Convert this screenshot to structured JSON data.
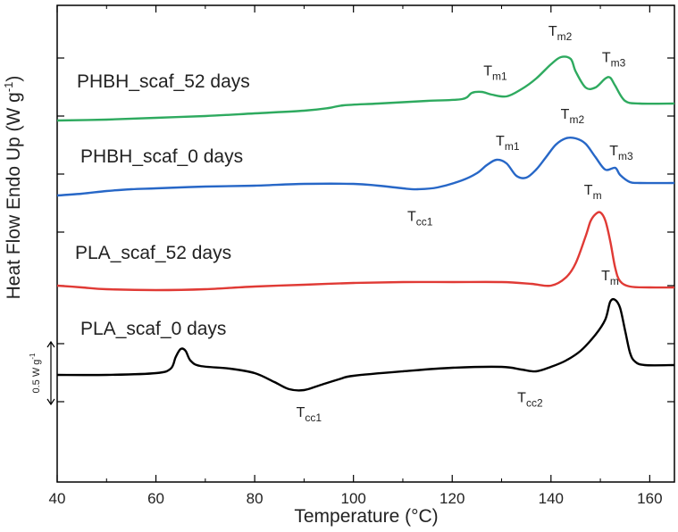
{
  "chart_data": {
    "type": "line",
    "xlabel": "Temperature (°C)",
    "ylabel": "Heat Flow Endo Up (W g",
    "ylabel_sup": "-1",
    "ylabel_close": ")",
    "xlim": [
      40,
      165
    ],
    "xticks": [
      40,
      60,
      80,
      100,
      120,
      140,
      160
    ],
    "scale_bar": {
      "label": "0.5 W g",
      "sup": "-1"
    },
    "series": [
      {
        "name": "PHBH_scaf_52 days",
        "color": "#2eaa5f",
        "points": [
          [
            40,
            135
          ],
          [
            50,
            134
          ],
          [
            60,
            132
          ],
          [
            70,
            130
          ],
          [
            80,
            127
          ],
          [
            90,
            124
          ],
          [
            95,
            121
          ],
          [
            98,
            118
          ],
          [
            105,
            116
          ],
          [
            115,
            113
          ],
          [
            122,
            111
          ],
          [
            124,
            104
          ],
          [
            126,
            103
          ],
          [
            128,
            106
          ],
          [
            131,
            108
          ],
          [
            134,
            100
          ],
          [
            137,
            88
          ],
          [
            140,
            72
          ],
          [
            142,
            64
          ],
          [
            144,
            66
          ],
          [
            145,
            80
          ],
          [
            147,
            98
          ],
          [
            149,
            98
          ],
          [
            151,
            88
          ],
          [
            152,
            87
          ],
          [
            153,
            96
          ],
          [
            155,
            113
          ],
          [
            158,
            116
          ],
          [
            165,
            116
          ]
        ]
      },
      {
        "name": "PHBH_scaf_0 days",
        "color": "#2767c7",
        "points": [
          [
            40,
            219
          ],
          [
            45,
            217
          ],
          [
            50,
            214
          ],
          [
            55,
            212
          ],
          [
            60,
            211
          ],
          [
            70,
            209
          ],
          [
            80,
            208
          ],
          [
            90,
            206
          ],
          [
            100,
            206
          ],
          [
            105,
            208
          ],
          [
            110,
            211
          ],
          [
            113,
            212
          ],
          [
            117,
            210
          ],
          [
            122,
            202
          ],
          [
            125,
            194
          ],
          [
            127,
            185
          ],
          [
            129,
            179
          ],
          [
            131,
            183
          ],
          [
            133,
            197
          ],
          [
            135,
            199
          ],
          [
            137,
            190
          ],
          [
            139,
            176
          ],
          [
            141,
            162
          ],
          [
            143,
            155
          ],
          [
            145,
            155
          ],
          [
            147,
            161
          ],
          [
            149,
            176
          ],
          [
            151,
            190
          ],
          [
            153,
            188
          ],
          [
            154,
            196
          ],
          [
            156,
            204
          ],
          [
            158,
            205
          ],
          [
            165,
            205
          ]
        ]
      },
      {
        "name": "PLA_scaf_52 days",
        "color": "#e03a35",
        "points": [
          [
            40,
            320
          ],
          [
            45,
            322
          ],
          [
            50,
            324
          ],
          [
            60,
            325
          ],
          [
            70,
            324
          ],
          [
            80,
            321
          ],
          [
            90,
            319
          ],
          [
            100,
            317
          ],
          [
            110,
            316
          ],
          [
            120,
            316
          ],
          [
            130,
            316
          ],
          [
            136,
            318
          ],
          [
            140,
            320
          ],
          [
            143,
            311
          ],
          [
            145,
            295
          ],
          [
            147,
            265
          ],
          [
            148,
            248
          ],
          [
            149,
            240
          ],
          [
            150,
            238
          ],
          [
            151,
            247
          ],
          [
            152,
            270
          ],
          [
            153,
            300
          ],
          [
            154,
            315
          ],
          [
            156,
            321
          ],
          [
            160,
            322
          ],
          [
            165,
            322
          ]
        ]
      },
      {
        "name": "PLA_scaf_0 days",
        "color": "#000000",
        "points": [
          [
            40,
            420
          ],
          [
            50,
            420
          ],
          [
            60,
            418
          ],
          [
            63,
            413
          ],
          [
            64,
            400
          ],
          [
            65,
            391
          ],
          [
            66,
            393
          ],
          [
            67,
            404
          ],
          [
            69,
            410
          ],
          [
            75,
            413
          ],
          [
            80,
            418
          ],
          [
            84,
            428
          ],
          [
            87,
            436
          ],
          [
            90,
            437
          ],
          [
            93,
            432
          ],
          [
            97,
            425
          ],
          [
            100,
            421
          ],
          [
            110,
            416
          ],
          [
            120,
            412
          ],
          [
            130,
            411
          ],
          [
            134,
            414
          ],
          [
            137,
            416
          ],
          [
            140,
            411
          ],
          [
            143,
            404
          ],
          [
            146,
            393
          ],
          [
            149,
            375
          ],
          [
            151,
            358
          ],
          [
            152,
            338
          ],
          [
            153,
            336
          ],
          [
            154,
            345
          ],
          [
            155,
            370
          ],
          [
            156,
            395
          ],
          [
            157,
            405
          ],
          [
            159,
            409
          ],
          [
            165,
            409
          ]
        ]
      }
    ],
    "series_label_positions": [
      {
        "text": "PHBH_scaf_52 days"
      },
      {
        "text": "PHBH_scaf_0 days"
      },
      {
        "text": "PLA_scaf_52 days"
      },
      {
        "text": "PLA_scaf_0 days"
      }
    ],
    "annotations": [
      {
        "base": "T",
        "sub": "m1",
        "x": 128.5,
        "y_offset": 0,
        "series": 0
      },
      {
        "base": "T",
        "sub": "m2",
        "x": 142,
        "series": 0
      },
      {
        "base": "T",
        "sub": "m3",
        "x": 152.5,
        "series": 0
      },
      {
        "base": "T",
        "sub": "m1",
        "x": 131,
        "series": 1
      },
      {
        "base": "T",
        "sub": "m2",
        "x": 144.5,
        "series": 1
      },
      {
        "base": "T",
        "sub": "m3",
        "x": 154,
        "series": 1
      },
      {
        "base": "T",
        "sub": "cc1",
        "x": 112,
        "series": 1
      },
      {
        "base": "T",
        "sub": "m",
        "x": 148.5,
        "series": 2
      },
      {
        "base": "T",
        "sub": "cc1",
        "x": 89.5,
        "series": 3
      },
      {
        "base": "T",
        "sub": "cc2",
        "x": 135,
        "series": 3
      },
      {
        "base": "T",
        "sub": "m",
        "x": 152,
        "series": 3
      }
    ]
  }
}
